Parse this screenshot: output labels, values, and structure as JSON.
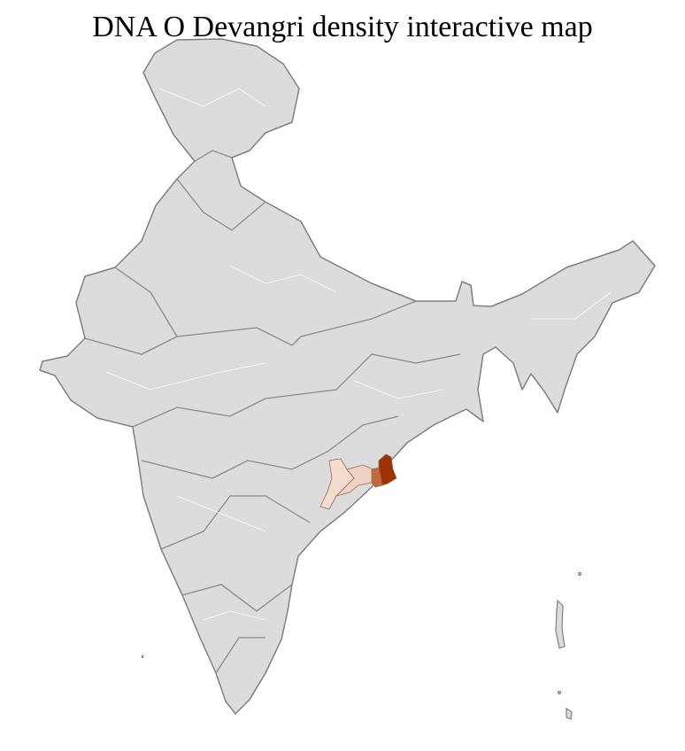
{
  "title": "DNA O Devangri density interactive map",
  "map": {
    "region": "India",
    "base_fill": "#dcdcdc",
    "district_border": "#ffffff",
    "state_border": "#808080",
    "highlighted_districts": [
      {
        "level": "high",
        "color": "#9c3300"
      },
      {
        "level": "medium",
        "color": "#c0693f"
      },
      {
        "level": "low",
        "color": "#f2dccf"
      },
      {
        "level": "low",
        "color": "#eed3c3"
      }
    ]
  }
}
